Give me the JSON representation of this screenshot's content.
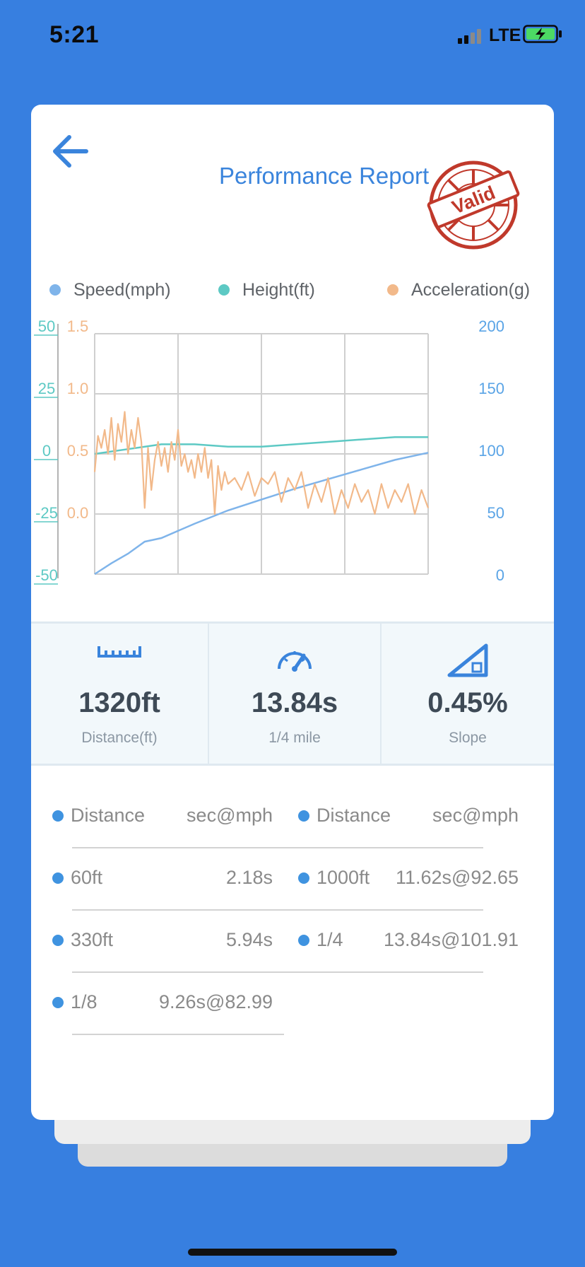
{
  "status": {
    "time": "5:21",
    "network": "LTE"
  },
  "header": {
    "title": "Performance Report",
    "stamp_text": "Valid",
    "back_icon": "back-arrow-icon"
  },
  "colors": {
    "background": "#377fe0",
    "speed": "#7fb4ea",
    "height": "#5dc9c4",
    "acceleration": "#f2b98a",
    "title": "#3a84dc",
    "stamp": "#c0392b",
    "bullet": "#3f93e0"
  },
  "legend": [
    {
      "label": "Speed(mph)"
    },
    {
      "label": "Height(ft)"
    },
    {
      "label": "Acceleration(g)"
    }
  ],
  "chart_data": {
    "type": "line",
    "left_axis_height": {
      "ticks": [
        "50",
        "25",
        "0",
        "-25",
        "-50"
      ],
      "range": [
        -50,
        50
      ]
    },
    "left_axis_acceleration": {
      "ticks": [
        "1.5",
        "1.0",
        "0.5",
        "0.0"
      ],
      "range": [
        -0.5,
        1.5
      ]
    },
    "right_axis_speed": {
      "ticks": [
        "200",
        "150",
        "100",
        "50",
        "0"
      ],
      "range": [
        0,
        200
      ]
    },
    "grid": true,
    "legend_position": "top",
    "series": [
      {
        "name": "Speed(mph)",
        "x": [
          0,
          0.05,
          0.1,
          0.15,
          0.2,
          0.3,
          0.4,
          0.5,
          0.6,
          0.7,
          0.8,
          0.9,
          1.0
        ],
        "values": [
          0,
          9,
          17,
          27,
          30,
          42,
          53,
          62,
          71,
          79,
          87,
          95,
          101
        ]
      },
      {
        "name": "Height(ft)",
        "x": [
          0,
          0.1,
          0.2,
          0.3,
          0.4,
          0.5,
          0.6,
          0.7,
          0.8,
          0.9,
          1.0
        ],
        "values": [
          0,
          2,
          4,
          4,
          3,
          3,
          4,
          5,
          6,
          7,
          7
        ]
      },
      {
        "name": "Acceleration(g)",
        "x": [
          0,
          0.01,
          0.02,
          0.03,
          0.04,
          0.05,
          0.06,
          0.07,
          0.08,
          0.09,
          0.1,
          0.11,
          0.12,
          0.13,
          0.14,
          0.15,
          0.16,
          0.17,
          0.18,
          0.19,
          0.2,
          0.21,
          0.22,
          0.23,
          0.24,
          0.25,
          0.26,
          0.27,
          0.28,
          0.29,
          0.3,
          0.31,
          0.32,
          0.33,
          0.34,
          0.35,
          0.36,
          0.37,
          0.38,
          0.39,
          0.4,
          0.42,
          0.44,
          0.46,
          0.48,
          0.5,
          0.52,
          0.54,
          0.56,
          0.58,
          0.6,
          0.62,
          0.64,
          0.66,
          0.68,
          0.7,
          0.72,
          0.74,
          0.76,
          0.78,
          0.8,
          0.82,
          0.84,
          0.86,
          0.88,
          0.9,
          0.92,
          0.94,
          0.96,
          0.98,
          1.0
        ],
        "values": [
          0.35,
          0.65,
          0.55,
          0.7,
          0.5,
          0.8,
          0.45,
          0.75,
          0.6,
          0.85,
          0.5,
          0.7,
          0.55,
          0.8,
          0.6,
          0.05,
          0.55,
          0.2,
          0.45,
          0.6,
          0.4,
          0.55,
          0.35,
          0.6,
          0.45,
          0.7,
          0.4,
          0.5,
          0.35,
          0.45,
          0.3,
          0.5,
          0.35,
          0.55,
          0.3,
          0.45,
          0.0,
          0.4,
          0.2,
          0.35,
          0.25,
          0.3,
          0.2,
          0.35,
          0.15,
          0.3,
          0.25,
          0.35,
          0.1,
          0.3,
          0.2,
          0.35,
          0.05,
          0.25,
          0.1,
          0.3,
          0.0,
          0.2,
          0.05,
          0.25,
          0.1,
          0.2,
          0.0,
          0.25,
          0.05,
          0.2,
          0.1,
          0.25,
          0.0,
          0.2,
          0.05
        ]
      }
    ]
  },
  "stats": [
    {
      "icon": "ruler-icon",
      "value": "1320ft",
      "label": "Distance(ft)"
    },
    {
      "icon": "speedometer-icon",
      "value": "13.84s",
      "label": "1/4 mile"
    },
    {
      "icon": "slope-icon",
      "value": "0.45%",
      "label": "Slope"
    }
  ],
  "table": {
    "headers": {
      "left": {
        "col1": "Distance",
        "col2": "sec@mph"
      },
      "right": {
        "col1": "Distance",
        "col2": "sec@mph"
      }
    },
    "left_rows": [
      {
        "distance": "60ft",
        "time": "2.18s"
      },
      {
        "distance": "330ft",
        "time": "5.94s"
      },
      {
        "distance": "1/8",
        "time": "9.26s@82.99"
      }
    ],
    "right_rows": [
      {
        "distance": "1000ft",
        "time": "11.62s@92.65"
      },
      {
        "distance": "1/4",
        "time": "13.84s@101.91"
      }
    ]
  }
}
